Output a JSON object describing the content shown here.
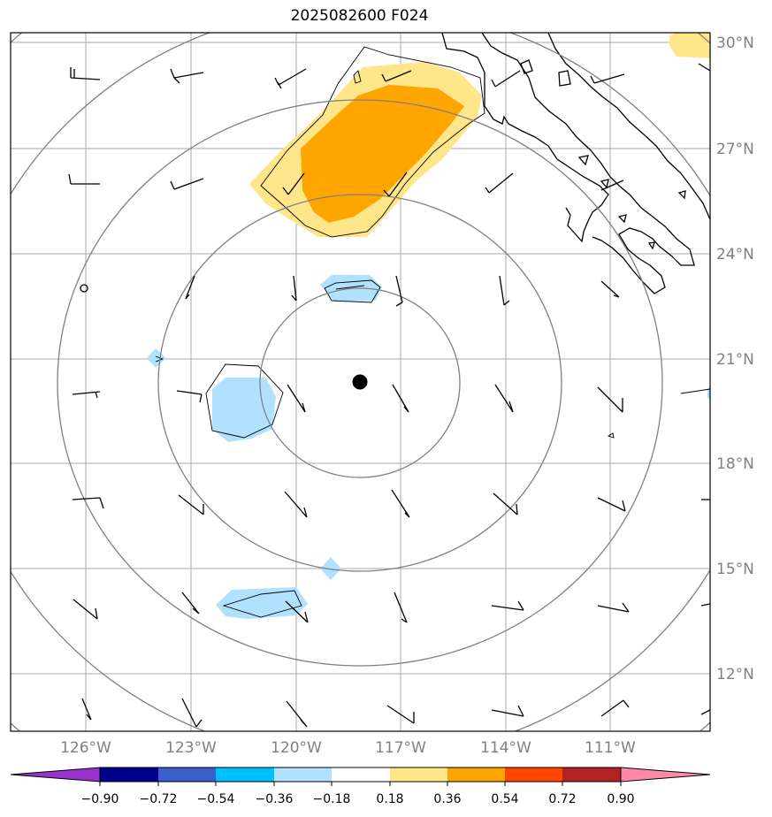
{
  "title": "2025082600 F024",
  "map": {
    "lat_labels": [
      "30°N",
      "27°N",
      "24°N",
      "21°N",
      "18°N",
      "15°N",
      "12°N"
    ],
    "lon_labels": [
      "126°W",
      "123°W",
      "120°W",
      "117°W",
      "114°W",
      "111°W"
    ],
    "center_marker": "storm-center",
    "contour_levels": [
      -0.9,
      -0.72,
      -0.54,
      -0.36,
      -0.18,
      0.18,
      0.36,
      0.54,
      0.72,
      0.9
    ]
  },
  "colorbar": {
    "labels": [
      "−0.90",
      "−0.72",
      "−0.54",
      "−0.36",
      "−0.18",
      "0.18",
      "0.36",
      "0.54",
      "0.72",
      "0.90"
    ],
    "colors": [
      "#9932cc",
      "#00008b",
      "#3a5fcd",
      "#00bfff",
      "#b0e2ff",
      "#ffffff",
      "#ffe68a",
      "#ffa500",
      "#ff4500",
      "#b22222",
      "#ff88aa"
    ]
  }
}
